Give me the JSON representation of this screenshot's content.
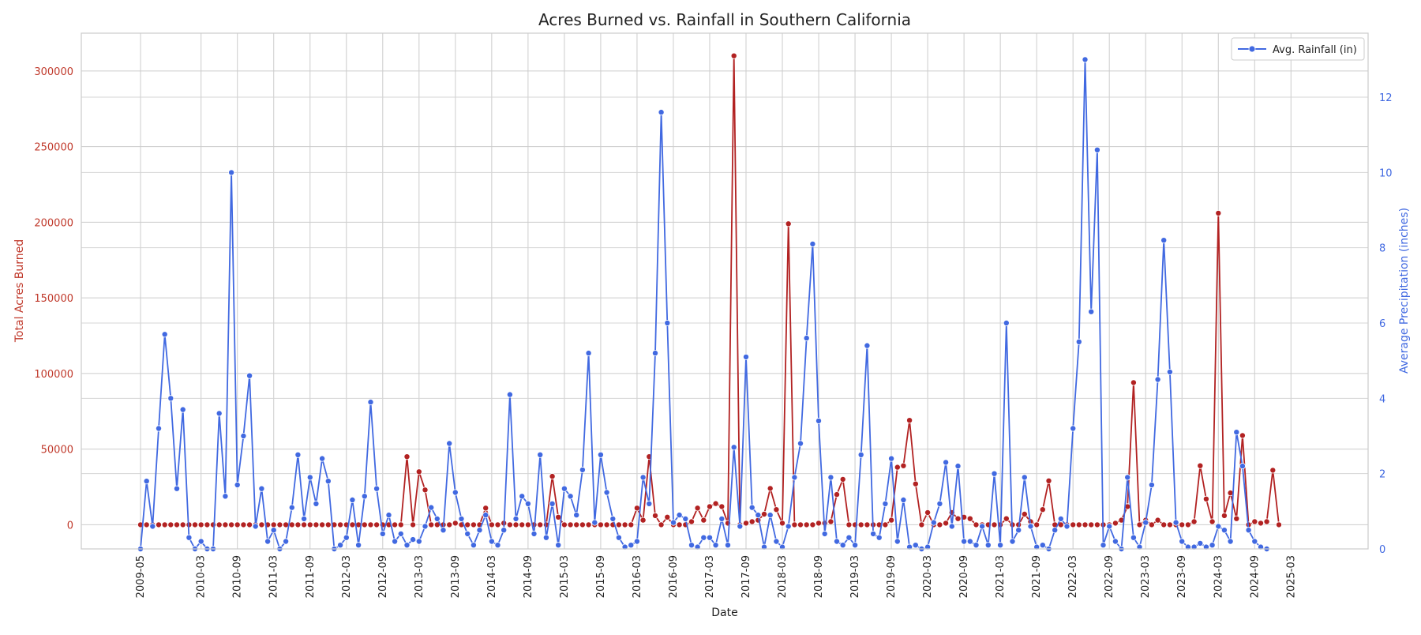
{
  "chart_data": {
    "type": "line",
    "title": "Acres Burned vs. Rainfall in Southern California",
    "xlabel": "Date",
    "ylabel_left": "Total Acres Burned",
    "ylabel_right": "Average Precipitation (inches)",
    "x_start": "2009-05",
    "x_tick_labels": [
      "2009-05",
      "2010-03",
      "2010-09",
      "2011-03",
      "2011-09",
      "2012-03",
      "2012-09",
      "2013-03",
      "2013-09",
      "2014-03",
      "2014-09",
      "2015-03",
      "2015-09",
      "2016-03",
      "2016-09",
      "2017-03",
      "2017-09",
      "2018-03",
      "2018-09",
      "2019-03",
      "2019-09",
      "2020-03",
      "2020-09",
      "2021-03",
      "2021-09",
      "2022-03",
      "2022-09",
      "2023-03",
      "2023-09",
      "2024-03",
      "2024-09",
      "2025-03"
    ],
    "ylim_left": [
      -16000,
      325000
    ],
    "yticks_left": [
      0,
      50000,
      100000,
      150000,
      200000,
      250000,
      300000
    ],
    "ylim_right": [
      0,
      13.7
    ],
    "yticks_right": [
      0,
      2,
      4,
      6,
      8,
      10,
      12
    ],
    "grid": true,
    "legend_position": "top-right",
    "series": [
      {
        "name": "",
        "axis": "left",
        "color": "#b22222",
        "values": [
          0,
          0,
          0,
          0,
          0,
          0,
          0,
          0,
          0,
          0,
          0,
          0,
          0,
          0,
          0,
          0,
          0,
          0,
          0,
          0,
          0,
          0,
          0,
          0,
          0,
          0,
          0,
          0,
          0,
          0,
          0,
          0,
          0,
          0,
          0,
          0,
          0,
          0,
          0,
          0,
          0,
          0,
          0,
          0,
          45000,
          0,
          35000,
          23000,
          0,
          0,
          0,
          0,
          1000,
          0,
          0,
          0,
          0,
          11000,
          0,
          0,
          1000,
          0,
          0,
          0,
          0,
          0,
          0,
          0,
          32000,
          5000,
          0,
          0,
          0,
          0,
          0,
          0,
          0,
          0,
          0,
          0,
          0,
          0,
          11000,
          3000,
          45000,
          6000,
          0,
          5000,
          0,
          0,
          0,
          2000,
          11000,
          3000,
          12000,
          14000,
          12000,
          1000,
          310000,
          0,
          1000,
          2000,
          3000,
          7000,
          24000,
          10000,
          1000,
          199000,
          0,
          0,
          0,
          0,
          1000,
          1000,
          2000,
          20000,
          30000,
          0,
          0,
          0,
          0,
          0,
          0,
          0,
          3000,
          38000,
          39000,
          69000,
          27000,
          0,
          8000,
          0,
          0,
          1000,
          8000,
          4000,
          5000,
          4000,
          0,
          0,
          0,
          0,
          0,
          4000,
          0,
          0,
          7000,
          2000,
          0,
          10000,
          29000,
          0,
          0,
          0,
          0,
          0,
          0,
          0,
          0,
          0,
          0,
          1000,
          3000,
          12000,
          94000,
          0,
          3000,
          0,
          3000,
          0,
          0,
          0,
          0,
          0,
          2000,
          39000,
          17000,
          2000,
          206000,
          6000,
          21000,
          4000,
          59000,
          0,
          2000,
          1000,
          2000,
          36000,
          0
        ]
      },
      {
        "name": "Avg. Rainfall (in)",
        "axis": "right",
        "color": "#4169e1",
        "values": [
          0,
          1.8,
          0.6,
          3.2,
          5.7,
          4.0,
          1.6,
          3.7,
          0.3,
          0,
          0.2,
          0,
          0,
          3.6,
          1.4,
          10,
          1.7,
          3,
          4.6,
          0.6,
          1.6,
          0.2,
          0.5,
          0,
          0.2,
          1.1,
          2.5,
          0.8,
          1.9,
          1.2,
          2.4,
          1.8,
          0,
          0.1,
          0.3,
          1.3,
          0.1,
          1.4,
          3.9,
          1.6,
          0.4,
          0.9,
          0.2,
          0.4,
          0.1,
          0.25,
          0.2,
          0.6,
          1.1,
          0.8,
          0.5,
          2.8,
          1.5,
          0.8,
          0.4,
          0.1,
          0.5,
          0.9,
          0.2,
          0.1,
          0.5,
          4.1,
          0.8,
          1.4,
          1.2,
          0.4,
          2.5,
          0.3,
          1.2,
          0.1,
          1.6,
          1.4,
          0.9,
          2.1,
          5.2,
          0.7,
          2.5,
          1.5,
          0.8,
          0.3,
          0.05,
          0.1,
          0.2,
          1.9,
          1.2,
          5.2,
          11.6,
          6,
          0.7,
          0.9,
          0.8,
          0.1,
          0.05,
          0.3,
          0.3,
          0.1,
          0.8,
          0.1,
          2.7,
          0.6,
          5.1,
          1.1,
          0.9,
          0.05,
          0.9,
          0.2,
          0.05,
          0.6,
          1.9,
          2.8,
          5.6,
          8.1,
          3.4,
          0.4,
          1.9,
          0.2,
          0.1,
          0.3,
          0.1,
          2.5,
          5.4,
          0.4,
          0.3,
          1.2,
          2.4,
          0.2,
          1.3,
          0.05,
          0.1,
          0,
          0.05,
          0.7,
          1.2,
          2.3,
          0.6,
          2.2,
          0.2,
          0.2,
          0.1,
          0.6,
          0.1,
          2.0,
          0.1,
          6.0,
          0.2,
          0.5,
          1.9,
          0.6,
          0.05,
          0.1,
          0,
          0.5,
          0.8,
          0.6,
          3.2,
          5.5,
          13,
          6.3,
          10.6,
          0.1,
          0.6,
          0.2,
          0,
          1.9,
          0.3,
          0.05,
          0.7,
          1.7,
          4.5,
          8.2,
          4.7,
          0.7,
          0.2,
          0.05,
          0.05,
          0.15,
          0.05,
          0.1,
          0.6,
          0.5,
          0.2,
          3.1,
          2.2,
          0.5,
          0.2,
          0.05,
          0
        ]
      }
    ]
  }
}
